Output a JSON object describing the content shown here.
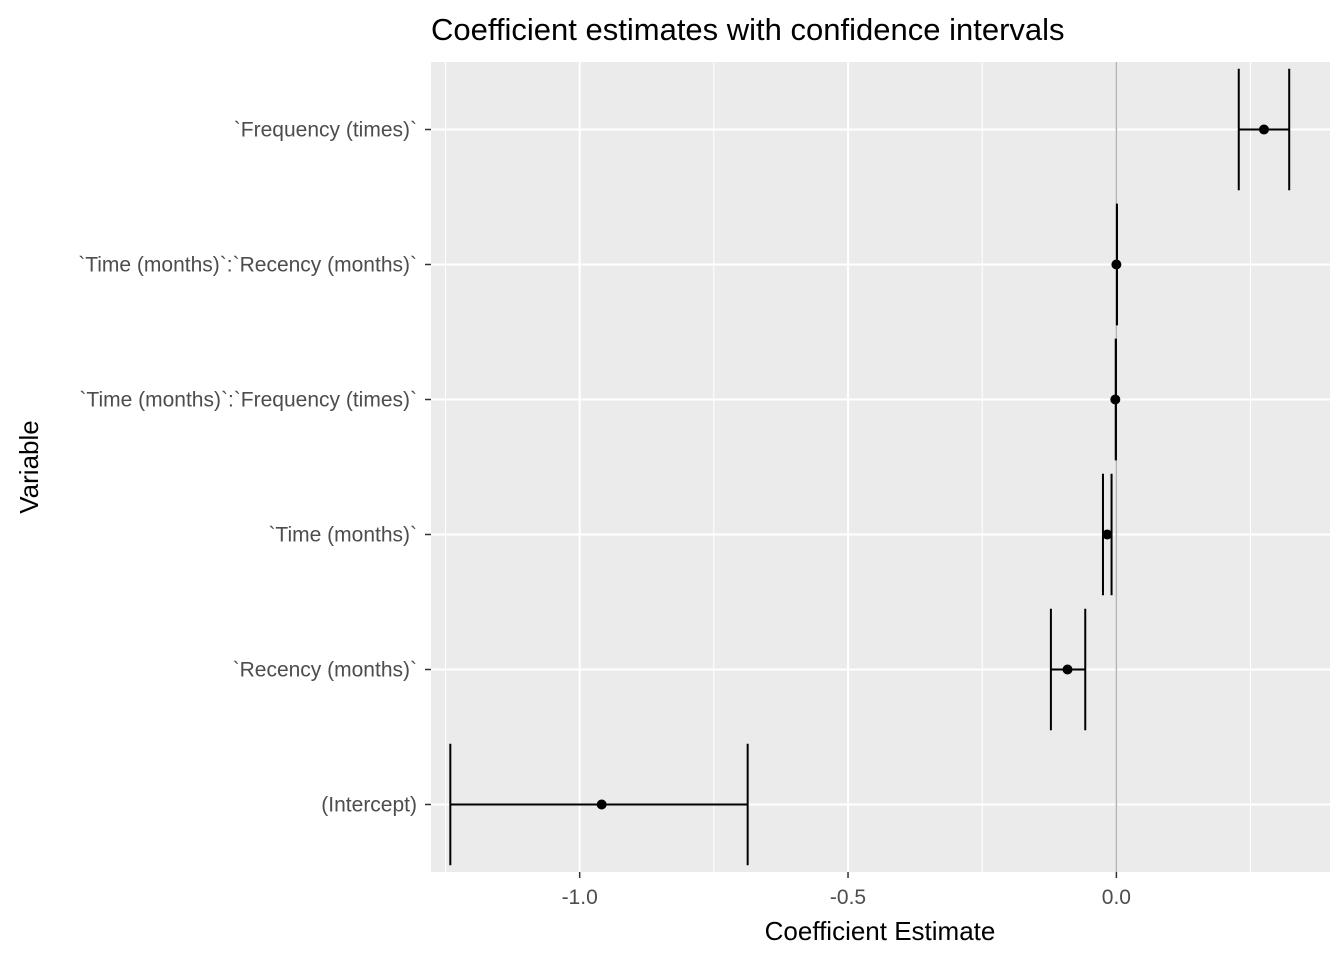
{
  "chart_data": {
    "type": "errorbar",
    "title": "Coefficient estimates with confidence intervals",
    "xlabel": "Coefficient Estimate",
    "ylabel": "Variable",
    "xlim": [
      -1.277,
      0.398
    ],
    "x_ticks": [
      -1.0,
      -0.5,
      0.0
    ],
    "x_tick_labels": [
      "-1.0",
      "-0.5",
      "0.0"
    ],
    "reference_line_x": 0,
    "grid": true,
    "colors": {
      "panel_background": "#ebebeb",
      "grid": "#ffffff",
      "reference_line": "#b3b3b3",
      "marks": "#000000",
      "tick_label": "#4d4d4d"
    },
    "categories": [
      "`Frequency (times)`",
      "`Time (months)`:`Recency (months)`",
      "`Time (months)`:`Frequency (times)`",
      "`Time (months)`",
      "`Recency (months)`",
      "(Intercept)"
    ],
    "estimates": [
      0.275,
      0.0,
      -0.002,
      -0.017,
      -0.091,
      -0.959
    ],
    "lower": [
      0.228,
      0.001,
      -0.001,
      -0.025,
      -0.122,
      -1.241
    ],
    "upper": [
      0.322,
      0.001,
      -0.001,
      -0.009,
      -0.058,
      -0.687
    ]
  }
}
